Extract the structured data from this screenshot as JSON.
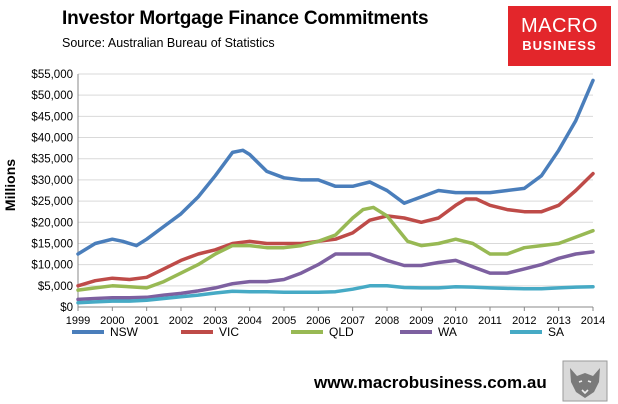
{
  "header": {
    "title": "Investor Mortgage Finance Commitments",
    "subtitle": "Source: Australian Bureau of Statistics"
  },
  "logo": {
    "line1": "MACRO",
    "line2": "BUSINESS"
  },
  "footer": {
    "url": "www.macrobusiness.com.au"
  },
  "chart_data": {
    "type": "line",
    "ylabel": "Millions",
    "xlabel": "",
    "ylim": [
      0,
      55000
    ],
    "xlim": [
      1999,
      2014
    ],
    "y_ticks": [
      "$0",
      "$5,000",
      "$10,000",
      "$15,000",
      "$20,000",
      "$25,000",
      "$30,000",
      "$35,000",
      "$40,000",
      "$45,000",
      "$50,000",
      "$55,000"
    ],
    "x_ticks": [
      "1999",
      "2000",
      "2001",
      "2002",
      "2003",
      "2004",
      "2005",
      "2006",
      "2007",
      "2008",
      "2009",
      "2010",
      "2011",
      "2012",
      "2013",
      "2014"
    ],
    "grid": true,
    "legend_position": "bottom",
    "series": [
      {
        "name": "NSW",
        "color": "#4a7ebb",
        "x": [
          1999.0,
          1999.5,
          2000.0,
          2000.3,
          2000.7,
          2001.0,
          2001.5,
          2002.0,
          2002.5,
          2003.0,
          2003.5,
          2003.8,
          2004.0,
          2004.5,
          2005.0,
          2005.5,
          2006.0,
          2006.5,
          2007.0,
          2007.5,
          2008.0,
          2008.5,
          2009.0,
          2009.5,
          2010.0,
          2010.5,
          2011.0,
          2011.5,
          2012.0,
          2012.5,
          2013.0,
          2013.5,
          2014.0
        ],
        "values": [
          12500,
          15000,
          16000,
          15500,
          14500,
          16000,
          19000,
          22000,
          26000,
          31000,
          36500,
          37000,
          36000,
          32000,
          30500,
          30000,
          30000,
          28500,
          28500,
          29500,
          27500,
          24500,
          26000,
          27500,
          27000,
          27000,
          27000,
          27500,
          28000,
          31000,
          37000,
          44000,
          53500
        ]
      },
      {
        "name": "VIC",
        "color": "#be4b48",
        "x": [
          1999.0,
          1999.5,
          2000.0,
          2000.5,
          2001.0,
          2001.5,
          2002.0,
          2002.5,
          2003.0,
          2003.5,
          2004.0,
          2004.5,
          2005.0,
          2005.5,
          2006.0,
          2006.5,
          2007.0,
          2007.5,
          2008.0,
          2008.5,
          2009.0,
          2009.5,
          2010.0,
          2010.3,
          2010.6,
          2011.0,
          2011.5,
          2012.0,
          2012.5,
          2013.0,
          2013.5,
          2014.0
        ],
        "values": [
          5000,
          6200,
          6800,
          6500,
          7000,
          9000,
          11000,
          12500,
          13500,
          15000,
          15500,
          15000,
          15000,
          15000,
          15500,
          16000,
          17500,
          20500,
          21500,
          21000,
          20000,
          21000,
          24000,
          25500,
          25500,
          24000,
          23000,
          22500,
          22500,
          24000,
          27500,
          31500
        ]
      },
      {
        "name": "QLD",
        "color": "#98b954",
        "x": [
          1999.0,
          1999.5,
          2000.0,
          2000.5,
          2001.0,
          2001.5,
          2002.0,
          2002.5,
          2003.0,
          2003.5,
          2004.0,
          2004.5,
          2005.0,
          2005.5,
          2006.0,
          2006.5,
          2007.0,
          2007.3,
          2007.6,
          2008.0,
          2008.3,
          2008.6,
          2009.0,
          2009.5,
          2010.0,
          2010.5,
          2011.0,
          2011.5,
          2012.0,
          2012.5,
          2013.0,
          2013.5,
          2014.0
        ],
        "values": [
          4000,
          4500,
          5000,
          4800,
          4500,
          6000,
          8000,
          10000,
          12500,
          14500,
          14500,
          14000,
          14000,
          14500,
          15500,
          17000,
          21000,
          23000,
          23500,
          21500,
          18500,
          15500,
          14500,
          15000,
          16000,
          15000,
          12500,
          12500,
          14000,
          14500,
          15000,
          16500,
          18000
        ]
      },
      {
        "name": "WA",
        "color": "#7d60a0",
        "x": [
          1999.0,
          1999.5,
          2000.0,
          2000.5,
          2001.0,
          2001.5,
          2002.0,
          2002.5,
          2003.0,
          2003.5,
          2004.0,
          2004.5,
          2005.0,
          2005.5,
          2006.0,
          2006.5,
          2007.0,
          2007.5,
          2008.0,
          2008.5,
          2009.0,
          2009.5,
          2010.0,
          2010.5,
          2011.0,
          2011.5,
          2012.0,
          2012.5,
          2013.0,
          2013.5,
          2014.0
        ],
        "values": [
          1800,
          2000,
          2200,
          2200,
          2300,
          2800,
          3200,
          3800,
          4500,
          5500,
          6000,
          6000,
          6500,
          8000,
          10000,
          12500,
          12500,
          12500,
          11000,
          9800,
          9800,
          10500,
          11000,
          9500,
          8000,
          8000,
          9000,
          10000,
          11500,
          12500,
          13000
        ]
      },
      {
        "name": "SA",
        "color": "#46aac5",
        "x": [
          1999.0,
          1999.5,
          2000.0,
          2000.5,
          2001.0,
          2001.5,
          2002.0,
          2002.5,
          2003.0,
          2003.5,
          2004.0,
          2004.5,
          2005.0,
          2005.5,
          2006.0,
          2006.5,
          2007.0,
          2007.5,
          2008.0,
          2008.5,
          2009.0,
          2009.5,
          2010.0,
          2010.5,
          2011.0,
          2011.5,
          2012.0,
          2012.5,
          2013.0,
          2013.5,
          2014.0
        ],
        "values": [
          1000,
          1200,
          1400,
          1400,
          1600,
          2000,
          2400,
          2800,
          3300,
          3700,
          3600,
          3600,
          3500,
          3500,
          3500,
          3600,
          4200,
          5000,
          5000,
          4600,
          4500,
          4500,
          4800,
          4700,
          4500,
          4400,
          4300,
          4300,
          4500,
          4700,
          4800
        ]
      }
    ]
  }
}
